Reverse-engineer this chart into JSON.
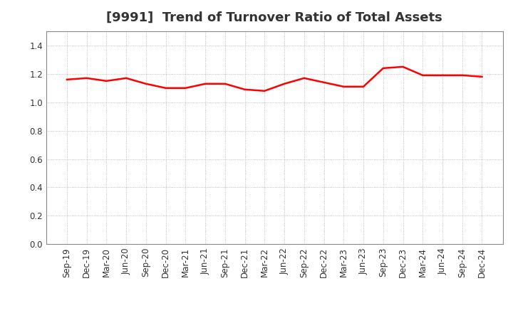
{
  "title": "[9991]  Trend of Turnover Ratio of Total Assets",
  "x_labels": [
    "Sep-19",
    "Dec-19",
    "Mar-20",
    "Jun-20",
    "Sep-20",
    "Dec-20",
    "Mar-21",
    "Jun-21",
    "Sep-21",
    "Dec-21",
    "Mar-22",
    "Jun-22",
    "Sep-22",
    "Dec-22",
    "Mar-23",
    "Jun-23",
    "Sep-23",
    "Dec-23",
    "Mar-24",
    "Jun-24",
    "Sep-24",
    "Dec-24"
  ],
  "y_values": [
    1.16,
    1.17,
    1.15,
    1.17,
    1.13,
    1.1,
    1.1,
    1.13,
    1.13,
    1.09,
    1.08,
    1.13,
    1.17,
    1.14,
    1.11,
    1.11,
    1.24,
    1.25,
    1.19,
    1.19,
    1.19,
    1.18
  ],
  "line_color": "#ff0000",
  "line_width": 1.8,
  "ylim": [
    0.0,
    1.5
  ],
  "yticks": [
    0.0,
    0.2,
    0.4,
    0.6,
    0.8,
    1.0,
    1.2,
    1.4
  ],
  "background_color": "#ffffff",
  "grid_color": "#999999",
  "title_color": "#333333",
  "title_fontsize": 13,
  "tick_fontsize": 8.5,
  "figure_width": 7.2,
  "figure_height": 4.4,
  "dpi": 100
}
